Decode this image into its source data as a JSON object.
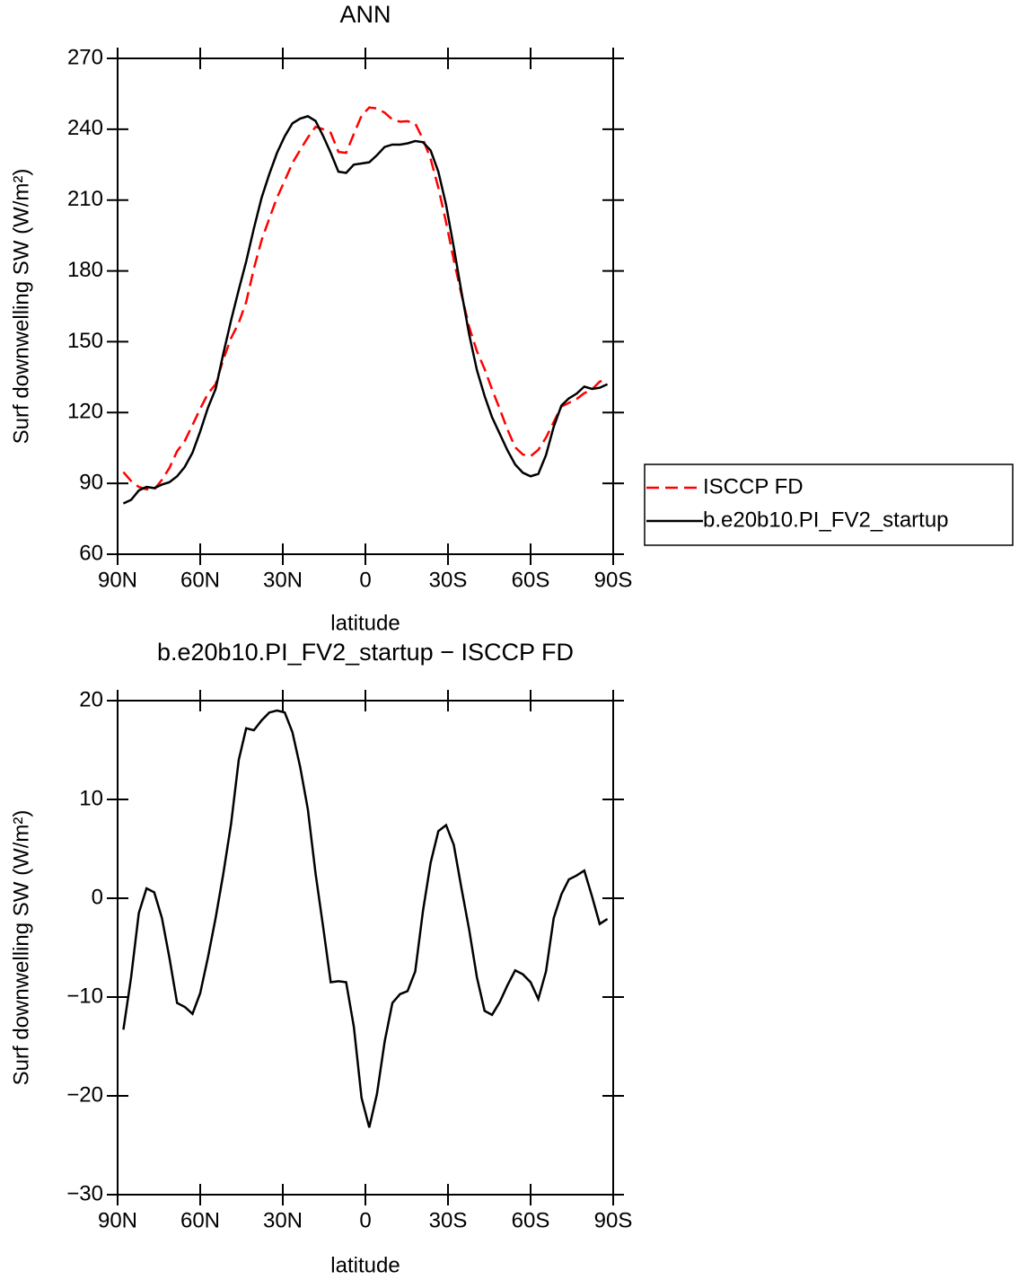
{
  "chart_data": [
    {
      "type": "line",
      "title": "ANN",
      "x_label": "latitude",
      "y_label": "Surf downwelling SW (W/m²)",
      "x": [
        87.9,
        85.1,
        82.3,
        79.5,
        76.7,
        73.9,
        71.2,
        68.4,
        65.6,
        62.8,
        60.0,
        57.2,
        54.4,
        51.6,
        48.8,
        46.0,
        43.3,
        40.5,
        37.7,
        34.9,
        32.1,
        29.3,
        26.5,
        23.7,
        20.9,
        18.1,
        15.3,
        12.6,
        9.8,
        7.0,
        4.2,
        1.4,
        -1.4,
        -4.2,
        -7.0,
        -9.8,
        -12.6,
        -15.3,
        -18.1,
        -20.9,
        -23.7,
        -26.5,
        -29.3,
        -32.1,
        -34.9,
        -37.7,
        -40.5,
        -43.3,
        -46.0,
        -48.8,
        -51.6,
        -54.4,
        -57.2,
        -60.0,
        -62.8,
        -65.6,
        -68.4,
        -71.2,
        -73.9,
        -76.7,
        -79.5,
        -82.3,
        -85.1,
        -87.9
      ],
      "series": [
        {
          "name": "ISCCP FD",
          "color": "#ff0000",
          "dashed": true,
          "values": [
            94.8,
            91,
            88.5,
            87.5,
            87.4,
            91.5,
            96.5,
            103.6,
            108,
            114.7,
            121.6,
            128,
            132,
            142.5,
            151.5,
            158,
            166.8,
            181,
            193,
            202.2,
            211,
            218.2,
            225.7,
            231.2,
            236.5,
            241,
            240,
            238.5,
            230.4,
            230,
            238,
            245.7,
            249.2,
            248.8,
            247,
            244.1,
            243.2,
            243.4,
            242.4,
            235.8,
            227.4,
            215.2,
            200.6,
            184.6,
            170,
            156.2,
            146,
            138.4,
            129.8,
            121.5,
            112.8,
            105.3,
            102.2,
            101.5,
            104.2,
            109.4,
            116,
            122.6,
            124.1,
            125.7,
            128.2,
            129.8,
            133.1,
            134.1
          ]
        },
        {
          "name": "b.e20b10.PI_FV2_startup",
          "color": "#000000",
          "dashed": false,
          "values": [
            81.5,
            83,
            87,
            88.5,
            88,
            89.5,
            90.5,
            93,
            97,
            103,
            112,
            122,
            130,
            145,
            159,
            172,
            184,
            198,
            211,
            221,
            230,
            237,
            242.5,
            244.5,
            245.5,
            243.5,
            237,
            230,
            222,
            221.5,
            225,
            225.5,
            226,
            229,
            232.5,
            233.5,
            233.5,
            234,
            235,
            234.5,
            231,
            222,
            208,
            190,
            171,
            153,
            138,
            127,
            118,
            111,
            104,
            98,
            94.5,
            93,
            94,
            102,
            114,
            123,
            126,
            128,
            131,
            130,
            130.5,
            132
          ]
        }
      ],
      "xlim": [
        90,
        -90
      ],
      "xticks": [
        {
          "value": 90,
          "label": "90N"
        },
        {
          "value": 60,
          "label": "60N"
        },
        {
          "value": 30,
          "label": "30N"
        },
        0,
        {
          "value": -30,
          "label": "30S"
        },
        {
          "value": -60,
          "label": "60S"
        },
        {
          "value": -90,
          "label": "90S"
        }
      ],
      "ylim": [
        60,
        270
      ],
      "yticks": [
        60,
        90,
        120,
        150,
        180,
        210,
        240,
        270
      ],
      "legend": "outside-right"
    },
    {
      "type": "line",
      "title": "b.e20b10.PI_FV2_startup − ISCCP FD",
      "x_label": "latitude",
      "y_label": "Surf downwelling SW (W/m²)",
      "x": [
        87.9,
        85.1,
        82.3,
        79.5,
        76.7,
        73.9,
        71.2,
        68.4,
        65.6,
        62.8,
        60.0,
        57.2,
        54.4,
        51.6,
        48.8,
        46.0,
        43.3,
        40.5,
        37.7,
        34.9,
        32.1,
        29.3,
        26.5,
        23.7,
        20.9,
        18.1,
        15.3,
        12.6,
        9.8,
        7.0,
        4.2,
        1.4,
        -1.4,
        -4.2,
        -7.0,
        -9.8,
        -12.6,
        -15.3,
        -18.1,
        -20.9,
        -23.7,
        -26.5,
        -29.3,
        -32.1,
        -34.9,
        -37.7,
        -40.5,
        -43.3,
        -46.0,
        -48.8,
        -51.6,
        -54.4,
        -57.2,
        -60.0,
        -62.8,
        -65.6,
        -68.4,
        -71.2,
        -73.9,
        -76.7,
        -79.5,
        -82.3,
        -85.1,
        -87.9
      ],
      "color": "#000000",
      "values": [
        -13.3,
        -8,
        -1.5,
        1,
        0.6,
        -2,
        -6,
        -10.6,
        -11,
        -11.7,
        -9.6,
        -6,
        -2,
        2.5,
        7.5,
        14,
        17.2,
        17,
        18,
        18.8,
        19,
        18.8,
        16.8,
        13.3,
        9,
        2.5,
        -3,
        -8.5,
        -8.4,
        -8.5,
        -13,
        -20.2,
        -23.2,
        -19.8,
        -14.5,
        -10.6,
        -9.7,
        -9.4,
        -7.4,
        -1.3,
        3.6,
        6.8,
        7.4,
        5.4,
        1,
        -3.2,
        -8,
        -11.4,
        -11.8,
        -10.5,
        -8.8,
        -7.3,
        -7.7,
        -8.5,
        -10.2,
        -7.4,
        -2,
        0.4,
        1.9,
        2.3,
        2.8,
        0.2,
        -2.6,
        -2.1
      ],
      "xlim": [
        90,
        -90
      ],
      "xticks": [
        {
          "value": 90,
          "label": "90N"
        },
        {
          "value": 60,
          "label": "60N"
        },
        {
          "value": 30,
          "label": "30N"
        },
        0,
        {
          "value": -30,
          "label": "30S"
        },
        {
          "value": -60,
          "label": "60S"
        },
        {
          "value": -90,
          "label": "90S"
        }
      ],
      "ylim": [
        -30,
        20
      ],
      "yticks": [
        {
          "value": -30,
          "label": "−30"
        },
        {
          "value": -20,
          "label": "−20"
        },
        {
          "value": -10,
          "label": "−10"
        },
        0,
        10,
        20
      ]
    }
  ]
}
